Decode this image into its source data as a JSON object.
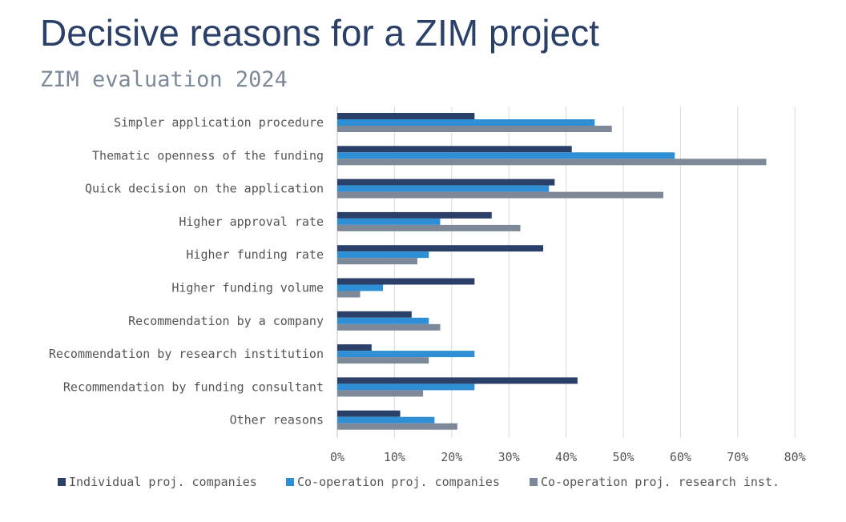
{
  "title": "Decisive reasons for a ZIM project",
  "subtitle": "ZIM evaluation 2024",
  "chart_data": {
    "type": "bar",
    "orientation": "horizontal",
    "categories": [
      "Simpler application procedure",
      "Thematic openness of the funding",
      "Quick decision on the application",
      "Higher approval rate",
      "Higher funding rate",
      "Higher funding volume",
      "Recommendation by a company",
      "Recommendation by research institution",
      "Recommendation by funding consultant",
      "Other reasons"
    ],
    "series": [
      {
        "name": "Individual proj. companies",
        "color": "#2b4069",
        "values": [
          24,
          41,
          38,
          27,
          36,
          24,
          13,
          6,
          42,
          11
        ]
      },
      {
        "name": "Co-operation proj. companies",
        "color": "#2e8fd4",
        "values": [
          45,
          59,
          37,
          18,
          16,
          8,
          16,
          24,
          24,
          17
        ]
      },
      {
        "name": "Co-operation proj. research inst.",
        "color": "#7d8999",
        "values": [
          48,
          75,
          57,
          32,
          14,
          4,
          18,
          16,
          15,
          21
        ]
      }
    ],
    "xlim": [
      0,
      80
    ],
    "xticks": [
      "0%",
      "10%",
      "20%",
      "30%",
      "40%",
      "50%",
      "60%",
      "70%",
      "80%"
    ],
    "grid": true,
    "legend": "bottom"
  }
}
